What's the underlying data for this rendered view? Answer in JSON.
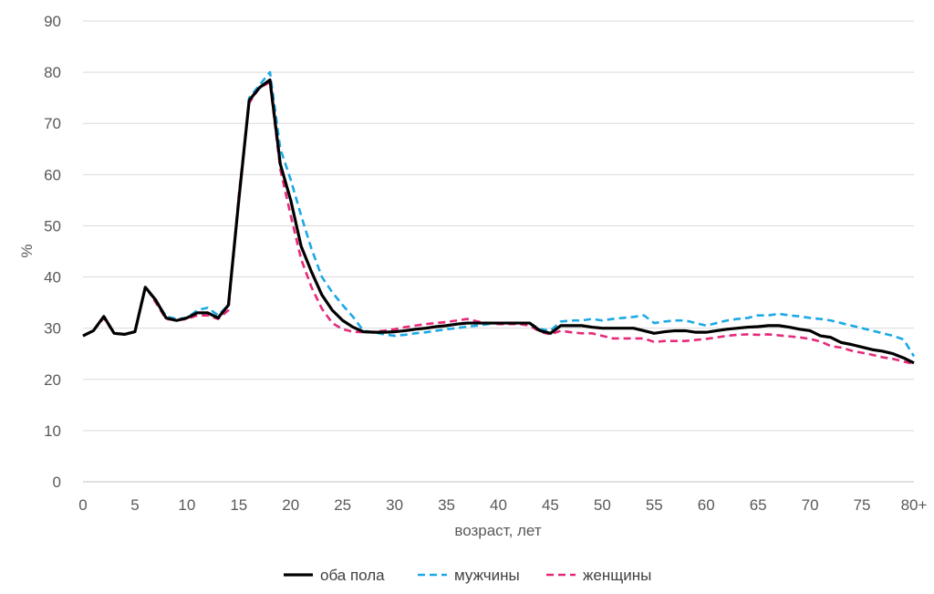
{
  "chart_data": {
    "type": "line",
    "xlabel": "возраст, лет",
    "ylabel": "%",
    "ylim": [
      0,
      90
    ],
    "yticks": [
      "0",
      "10",
      "20",
      "30",
      "40",
      "50",
      "60",
      "70",
      "80",
      "90"
    ],
    "xtick_labels": [
      "0",
      "5",
      "10",
      "15",
      "20",
      "25",
      "30",
      "35",
      "40",
      "45",
      "50",
      "55",
      "60",
      "65",
      "70",
      "75",
      "80+"
    ],
    "grid": "horizontal",
    "legend_position": "bottom",
    "x": [
      "0",
      "1",
      "2",
      "3",
      "4",
      "5",
      "6",
      "7",
      "8",
      "9",
      "10",
      "11",
      "12",
      "13",
      "14",
      "15",
      "16",
      "17",
      "18",
      "19",
      "20",
      "21",
      "22",
      "23",
      "24",
      "25",
      "26",
      "27",
      "28",
      "29",
      "30",
      "31",
      "32",
      "33",
      "34",
      "35",
      "36",
      "37",
      "38",
      "39",
      "40",
      "41",
      "42",
      "43",
      "44",
      "45",
      "46",
      "47",
      "48",
      "49",
      "50",
      "51",
      "52",
      "53",
      "54",
      "55",
      "56",
      "57",
      "58",
      "59",
      "60",
      "61",
      "62",
      "63",
      "64",
      "65",
      "66",
      "67",
      "68",
      "69",
      "70",
      "71",
      "72",
      "73",
      "74",
      "75",
      "76",
      "77",
      "78",
      "79",
      "80+"
    ],
    "series": [
      {
        "name": "оба пола",
        "color": "#000000",
        "dash": "solid",
        "values": [
          28.5,
          29.5,
          32.3,
          29,
          28.8,
          29.3,
          38,
          35.5,
          32,
          31.5,
          32,
          33,
          33,
          32,
          34.5,
          55,
          74.5,
          77,
          78.5,
          62,
          55,
          46,
          41,
          36.5,
          33.5,
          31.5,
          30.2,
          29.3,
          29.2,
          29.2,
          29.3,
          29.5,
          29.8,
          30,
          30.3,
          30.5,
          30.8,
          31,
          31,
          31,
          31,
          31,
          31,
          31,
          29.5,
          29,
          30.5,
          30.5,
          30.5,
          30.2,
          30,
          30,
          30,
          30,
          29.5,
          29,
          29.3,
          29.5,
          29.5,
          29.2,
          29.2,
          29.5,
          29.8,
          30,
          30.2,
          30.3,
          30.5,
          30.5,
          30.2,
          29.8,
          29.5,
          28.5,
          28.2,
          27.2,
          26.8,
          26.3,
          25.8,
          25.5,
          25,
          24.2,
          23.2
        ]
      },
      {
        "name": "мужчины",
        "color": "#1aa9e6",
        "dash": "dashed",
        "values": [
          28.5,
          29.5,
          32.3,
          29,
          28.8,
          29.3,
          38,
          35.5,
          32.3,
          31.8,
          32,
          33.5,
          34,
          32.5,
          34.5,
          55,
          75,
          77.5,
          80,
          65,
          59,
          52,
          45.5,
          40,
          37,
          34.5,
          32.2,
          29.5,
          29.2,
          28.8,
          28.5,
          28.7,
          29,
          29.2,
          29.5,
          29.8,
          30,
          30.3,
          30.5,
          30.8,
          31,
          31,
          31,
          31,
          29.8,
          29.5,
          31.3,
          31.5,
          31.5,
          31.8,
          31.5,
          31.8,
          32,
          32.2,
          32.5,
          31,
          31.3,
          31.5,
          31.5,
          31,
          30.5,
          31,
          31.5,
          31.8,
          32,
          32.5,
          32.5,
          32.8,
          32.5,
          32.3,
          32,
          31.8,
          31.5,
          31,
          30.5,
          30,
          29.5,
          29,
          28.5,
          27.8,
          24.5
        ]
      },
      {
        "name": "женщины",
        "color": "#e6297a",
        "dash": "dashed",
        "values": [
          28.5,
          29.5,
          32,
          29,
          28.8,
          29.3,
          38.2,
          35,
          31.8,
          31.5,
          31.8,
          32.5,
          32.5,
          31.8,
          33.5,
          56,
          74,
          77,
          78,
          61,
          52,
          43.5,
          38,
          33.8,
          31,
          29.8,
          29.3,
          29.2,
          29.3,
          29.5,
          29.8,
          30.2,
          30.5,
          30.8,
          31,
          31.2,
          31.5,
          31.8,
          31.3,
          31,
          30.8,
          30.8,
          30.8,
          30.5,
          29.3,
          28.8,
          29.5,
          29.2,
          29,
          29,
          28.5,
          28,
          28,
          28,
          28,
          27.3,
          27.5,
          27.5,
          27.5,
          27.7,
          27.9,
          28.2,
          28.5,
          28.7,
          28.8,
          28.7,
          28.8,
          28.6,
          28.4,
          28.2,
          27.9,
          27.4,
          26.5,
          26.2,
          25.6,
          25.2,
          24.8,
          24.3,
          24,
          23.5,
          23
        ]
      }
    ]
  }
}
